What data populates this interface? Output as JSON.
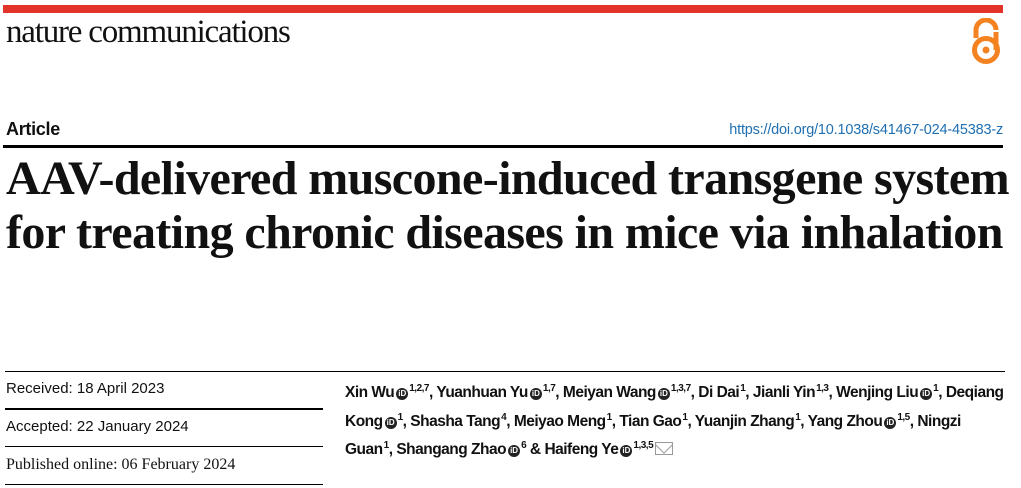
{
  "header": {
    "journal": "nature communications",
    "article_type": "Article",
    "doi": "https://doi.org/10.1038/s41467-024-45383-z",
    "brand_color": "#e2342a",
    "open_access_icon": "open-access-lock-icon",
    "open_access_color": "#f58220"
  },
  "title": "AAV-delivered muscone-induced transgene system for treating chronic diseases in mice via inhalation",
  "dates": {
    "received": "Received: 18 April 2023",
    "accepted": "Accepted: 22 January 2024",
    "published": "Published online: 06 February 2024"
  },
  "authors": [
    {
      "name": "Xin Wu",
      "orcid": true,
      "aff": "1,2,7",
      "sep": ", "
    },
    {
      "name": "Yuanhuan Yu",
      "orcid": true,
      "aff": "1,7",
      "sep": ", "
    },
    {
      "name": "Meiyan Wang",
      "orcid": true,
      "aff": "1,3,7",
      "sep": ", "
    },
    {
      "name": "Di Dai",
      "orcid": false,
      "aff": "1",
      "sep": ", "
    },
    {
      "name": "Jianli Yin",
      "orcid": false,
      "aff": "1,3",
      "sep": ", "
    },
    {
      "name": "Wenjing Liu",
      "orcid": true,
      "aff": "1",
      "sep": ", "
    },
    {
      "name": "Deqiang Kong",
      "orcid": true,
      "aff": "1",
      "sep": ", "
    },
    {
      "name": "Shasha Tang",
      "orcid": false,
      "aff": "4",
      "sep": ", "
    },
    {
      "name": "Meiyao Meng",
      "orcid": false,
      "aff": "1",
      "sep": ", "
    },
    {
      "name": "Tian Gao",
      "orcid": false,
      "aff": "1",
      "sep": ", "
    },
    {
      "name": "Yuanjin Zhang",
      "orcid": false,
      "aff": "1",
      "sep": ", "
    },
    {
      "name": "Yang Zhou",
      "orcid": true,
      "aff": "1,5",
      "sep": ", "
    },
    {
      "name": "Ningzi Guan",
      "orcid": false,
      "aff": "1",
      "sep": ", "
    },
    {
      "name": "Shangang Zhao",
      "orcid": true,
      "aff": "6",
      "sep": " & "
    },
    {
      "name": "Haifeng Ye",
      "orcid": true,
      "aff": "1,3,5",
      "sep": "",
      "corresponding": true
    }
  ]
}
